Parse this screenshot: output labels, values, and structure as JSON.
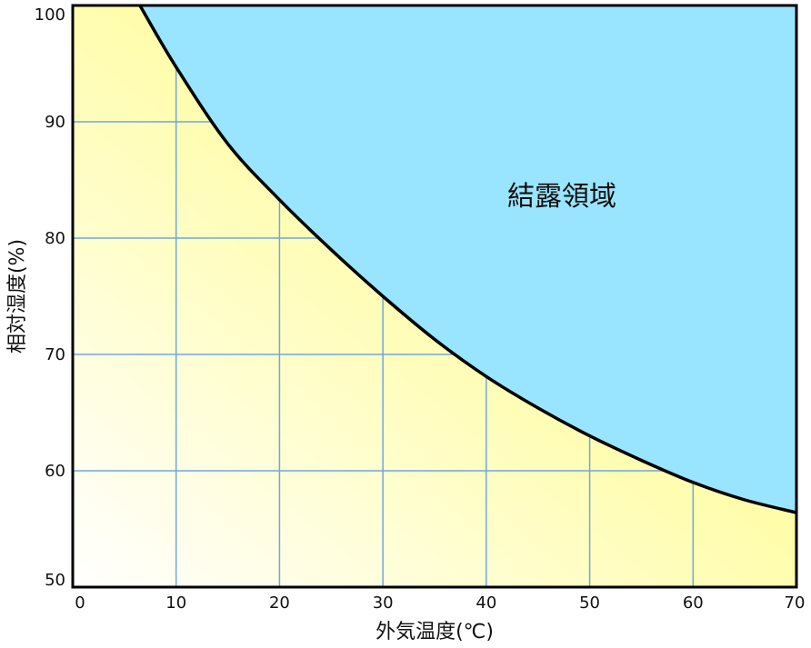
{
  "chart_data": {
    "type": "area",
    "title": "",
    "xlabel": "外気温度(℃)",
    "ylabel": "相対湿度(%)",
    "xlim": [
      0,
      70
    ],
    "ylim": [
      50,
      100
    ],
    "xticks": [
      0,
      10,
      20,
      30,
      40,
      50,
      60,
      70
    ],
    "yticks": [
      50,
      60,
      70,
      80,
      90,
      100
    ],
    "grid": true,
    "region_label": "結露領域",
    "series": [
      {
        "x": [
          6.5,
          10,
          15,
          20,
          25,
          30,
          35,
          40,
          45,
          50,
          55,
          60,
          65,
          70
        ],
        "values": [
          100,
          94.7,
          88.1,
          83.3,
          79,
          75,
          71.3,
          68.1,
          65.4,
          63,
          60.9,
          59,
          57.5,
          56.4
        ]
      }
    ],
    "colors": {
      "condensation_fill": "#99E5FF",
      "safe_fill_top": "#FFFF66",
      "safe_fill_bottom": "#FFFFFF",
      "grid": "#6FA8DC",
      "curve": "#000000",
      "frame": "#000000"
    }
  }
}
